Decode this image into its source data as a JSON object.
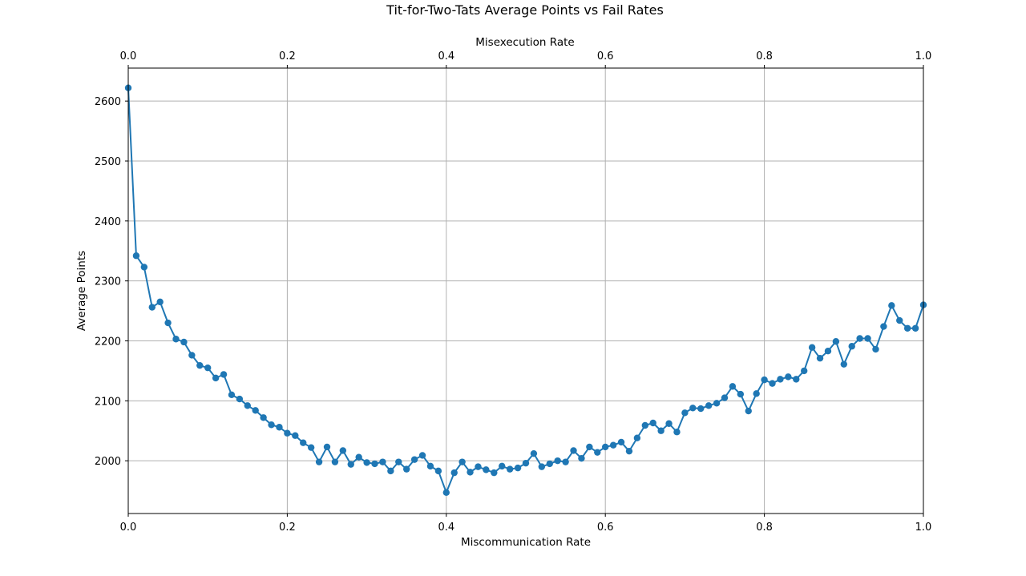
{
  "chart_data": {
    "type": "line",
    "title": "Tit-for-Two-Tats Average Points vs Fail Rates",
    "xlabel": "Miscommunication Rate",
    "x2label": "Misexecution Rate",
    "ylabel": "Average Points",
    "xlim": [
      0.0,
      1.0
    ],
    "ylim": [
      1912,
      2655
    ],
    "grid": true,
    "x_ticks": [
      "0.0",
      "0.2",
      "0.4",
      "0.6",
      "0.8",
      "1.0"
    ],
    "x_tick_values": [
      0.0,
      0.2,
      0.4,
      0.6,
      0.8,
      1.0
    ],
    "y_ticks": [
      "2000",
      "2100",
      "2200",
      "2300",
      "2400",
      "2500",
      "2600"
    ],
    "y_tick_values": [
      2000,
      2100,
      2200,
      2300,
      2400,
      2500,
      2600
    ],
    "series": [
      {
        "color": "#1f77b4",
        "marker": "circle",
        "x": [
          0.0,
          0.01,
          0.02,
          0.03,
          0.04,
          0.05,
          0.06,
          0.07,
          0.08,
          0.09,
          0.1,
          0.11,
          0.12,
          0.13,
          0.14,
          0.15,
          0.16,
          0.17,
          0.18,
          0.19,
          0.2,
          0.21,
          0.22,
          0.23,
          0.24,
          0.25,
          0.26,
          0.27,
          0.28,
          0.29,
          0.3,
          0.31,
          0.32,
          0.33,
          0.34,
          0.35,
          0.36,
          0.37,
          0.38,
          0.39,
          0.4,
          0.41,
          0.42,
          0.43,
          0.44,
          0.45,
          0.46,
          0.47,
          0.48,
          0.49,
          0.5,
          0.51,
          0.52,
          0.53,
          0.54,
          0.55,
          0.56,
          0.57,
          0.58,
          0.59,
          0.6,
          0.61,
          0.62,
          0.63,
          0.64,
          0.65,
          0.66,
          0.67,
          0.68,
          0.69,
          0.7,
          0.71,
          0.72,
          0.73,
          0.74,
          0.75,
          0.76,
          0.77,
          0.78,
          0.79,
          0.8,
          0.81,
          0.82,
          0.83,
          0.84,
          0.85,
          0.86,
          0.87,
          0.88,
          0.89,
          0.9,
          0.91,
          0.92,
          0.93,
          0.94,
          0.95,
          0.96,
          0.97,
          0.98,
          0.99,
          1.0
        ],
        "y": [
          2622,
          2342,
          2323,
          2256,
          2265,
          2230,
          2203,
          2198,
          2176,
          2159,
          2155,
          2138,
          2144,
          2110,
          2103,
          2092,
          2084,
          2072,
          2060,
          2056,
          2046,
          2042,
          2030,
          2022,
          1998,
          2023,
          1998,
          2017,
          1994,
          2006,
          1997,
          1995,
          1998,
          1983,
          1998,
          1986,
          2002,
          2009,
          1991,
          1983,
          1947,
          1980,
          1998,
          1981,
          1990,
          1985,
          1980,
          1991,
          1986,
          1988,
          1996,
          2012,
          1990,
          1995,
          2000,
          1998,
          2017,
          2004,
          2023,
          2014,
          2023,
          2026,
          2031,
          2016,
          2038,
          2059,
          2063,
          2050,
          2062,
          2048,
          2080,
          2088,
          2087,
          2092,
          2096,
          2105,
          2124,
          2111,
          2083,
          2112,
          2135,
          2129,
          2136,
          2140,
          2136,
          2150,
          2189,
          2171,
          2183,
          2199,
          2161,
          2191,
          2204,
          2204,
          2186,
          2224,
          2259,
          2234,
          2221,
          2221,
          2260
        ]
      }
    ]
  }
}
